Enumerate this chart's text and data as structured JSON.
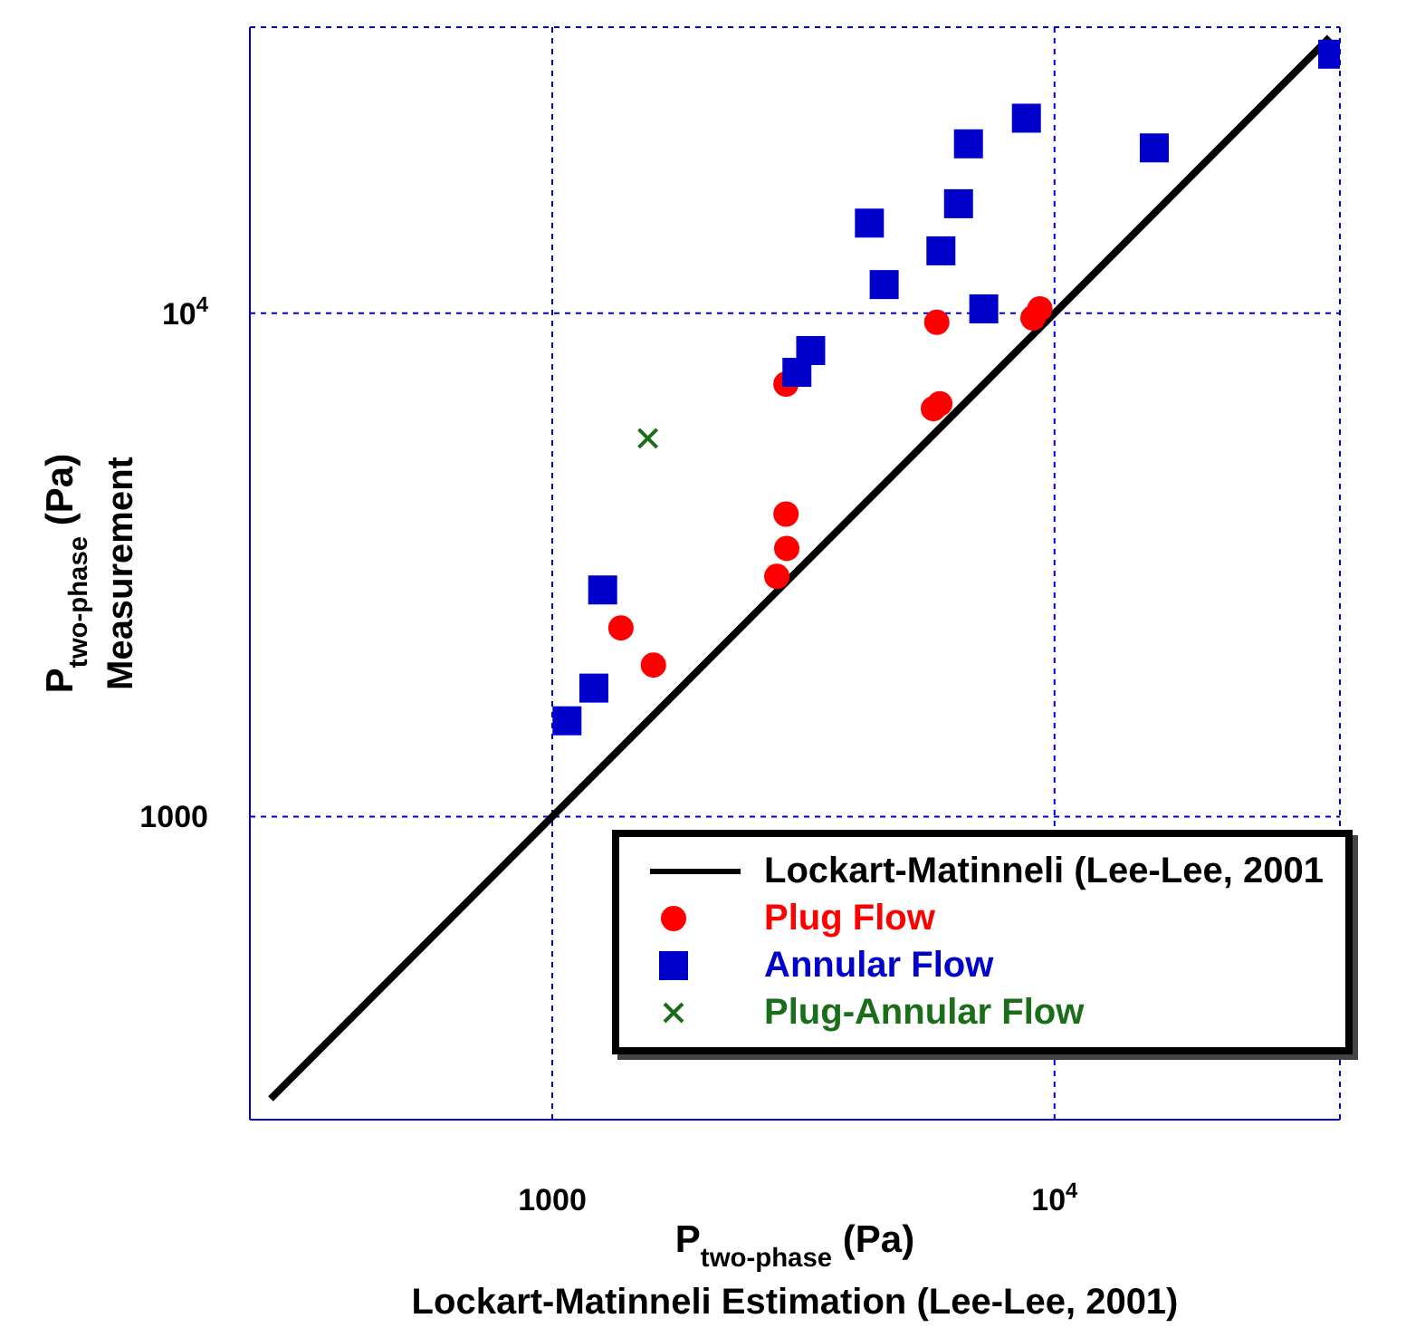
{
  "chart_data": {
    "type": "scatter",
    "xlabel": "P$_{two-phase}$ (Pa)\nLockart-Matinneli Estimation (Lee-Lee, 2001)",
    "ylabel": "P$_{two-phase}$ (Pa)\nMeasurement",
    "log": "xy",
    "xlim": [
      250,
      37000
    ],
    "ylim": [
      250,
      37000
    ],
    "xticks": [
      1000,
      {
        "value": 10000,
        "label": "10$^{4}$"
      }
    ],
    "yticks": [
      1000,
      {
        "value": 10000,
        "label": "10$^{4}$"
      }
    ],
    "grid": true,
    "legend": "bottom right",
    "series": [
      {
        "name": "Lockart-Matinneli (Lee-Lee, 2001",
        "type": "line",
        "color": "#000000",
        "marker": "none",
        "line_style": "solid",
        "x": [
          275,
          35300
        ],
        "values": [
          275,
          35300
        ]
      },
      {
        "name": "Plug Flow",
        "type": "scatter",
        "color": "#ff0000",
        "marker": "circle",
        "x": [
          9350,
          9060,
          5830,
          2920,
          5910,
          5740,
          2920,
          2930,
          2800,
          1370,
          1590
        ],
        "values": [
          10200,
          9780,
          9590,
          7230,
          6610,
          6460,
          3990,
          3410,
          3000,
          2370,
          2000
        ]
      },
      {
        "name": "Annular Flow",
        "type": "scatter",
        "color": "#0000cc",
        "marker": "square",
        "x": [
          35800,
          8790,
          6740,
          15800,
          6440,
          4280,
          5940,
          4580,
          7230,
          3270,
          3070,
          1260,
          1210,
          1070
        ],
        "values": [
          32700,
          24400,
          21700,
          21300,
          16500,
          15100,
          13300,
          11400,
          10200,
          8430,
          7630,
          2820,
          1800,
          1550
        ]
      },
      {
        "name": "Plug-Annular Flow",
        "type": "scatter",
        "color": "#1a6e1a",
        "marker": "cross",
        "x": [
          1550
        ],
        "values": [
          5640
        ]
      }
    ]
  }
}
